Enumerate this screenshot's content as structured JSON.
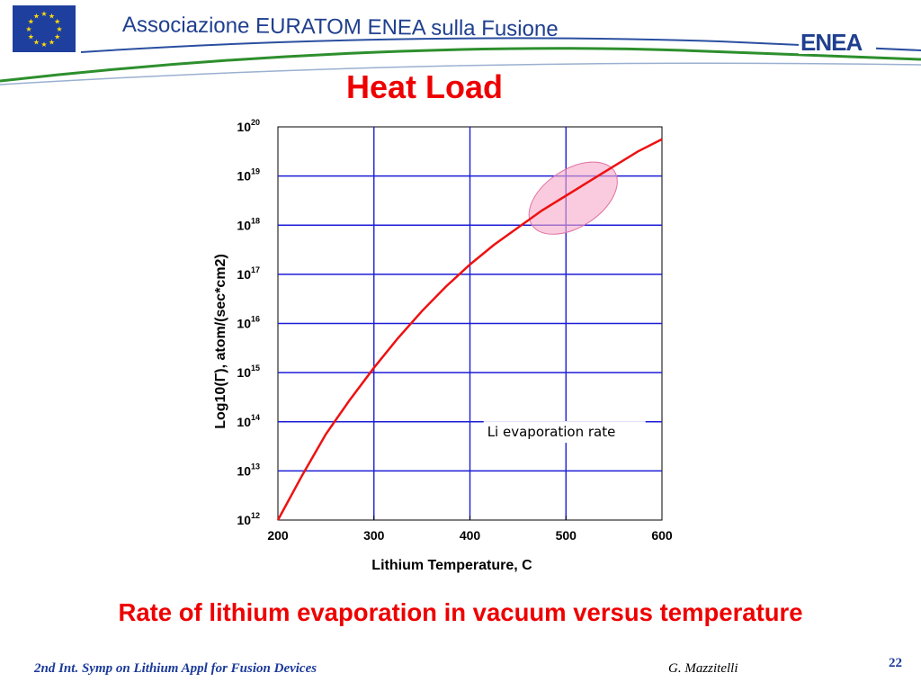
{
  "header": {
    "association_title": "Associazione EURATOM ENEA sulla Fusione",
    "enea_logo": "ENEA",
    "eu_flag_icon": "eu-flag-icon"
  },
  "slide": {
    "title": "Heat Load",
    "caption": "Rate of lithium evaporation in vacuum versus temperature"
  },
  "footer": {
    "conference": "2nd Int. Symp on Lithium Appl for Fusion Devices",
    "author": "G. Mazzitelli",
    "page_number": "22"
  },
  "colors": {
    "title_red": "#ee0000",
    "grid_blue": "#1c1cd6",
    "curve_red": "#ee1111",
    "highlight_pink": "#f7a8c8",
    "header_blue": "#1f3f8f",
    "footer_blue": "#1a3a9a"
  },
  "chart_data": {
    "type": "line",
    "xlabel": "Lithium Temperature, C",
    "ylabel": "Log10(Γ), atom/(sec*cm2)",
    "xlim": [
      200,
      600
    ],
    "ylim": [
      12,
      20
    ],
    "x_ticks": [
      "200",
      "300",
      "400",
      "500",
      "600"
    ],
    "y_ticks": [
      {
        "base": "10",
        "exp": "12"
      },
      {
        "base": "10",
        "exp": "13"
      },
      {
        "base": "10",
        "exp": "14"
      },
      {
        "base": "10",
        "exp": "15"
      },
      {
        "base": "10",
        "exp": "16"
      },
      {
        "base": "10",
        "exp": "17"
      },
      {
        "base": "10",
        "exp": "18"
      },
      {
        "base": "10",
        "exp": "19"
      },
      {
        "base": "10",
        "exp": "20"
      }
    ],
    "grid": true,
    "annotation": "Li evaporation rate",
    "highlight_region": {
      "x_range": [
        460,
        555
      ],
      "y_range": [
        17.7,
        19.4
      ]
    },
    "series": [
      {
        "x": [
          200,
          225,
          250,
          275,
          300,
          325,
          350,
          375,
          400,
          425,
          450,
          475,
          500,
          525,
          550,
          575,
          600
        ],
        "values": [
          12.0,
          12.9,
          13.75,
          14.45,
          15.1,
          15.7,
          16.25,
          16.75,
          17.2,
          17.6,
          17.95,
          18.3,
          18.6,
          18.9,
          19.2,
          19.5,
          19.75
        ]
      }
    ]
  }
}
